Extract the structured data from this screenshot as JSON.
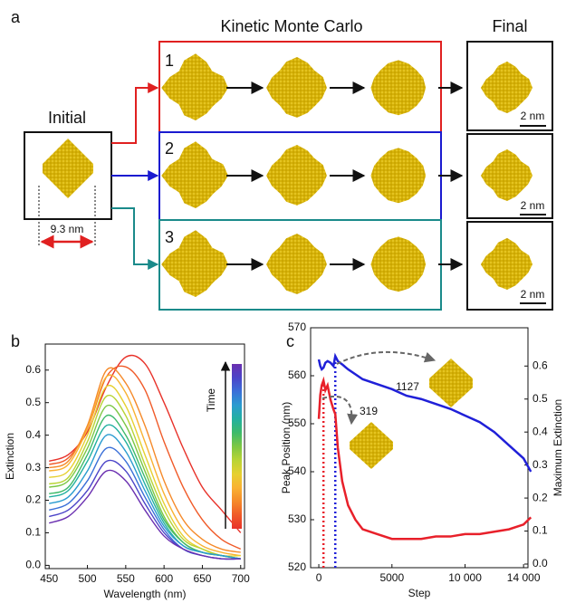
{
  "panel_a": {
    "label": "a",
    "kmc_title": "Kinetic Monte Carlo",
    "final_title": "Final",
    "initial_title": "Initial",
    "runs": [
      "1",
      "2",
      "3"
    ],
    "size_label": "9.3 nm",
    "scale_labels": [
      "2 nm",
      "2 nm",
      "2 nm"
    ]
  },
  "chart_data": [
    {
      "type": "line",
      "panel_label": "b",
      "xlabel": "Wavelength (nm)",
      "ylabel": "Extinction",
      "colorbar_label": "Time",
      "x": [
        450,
        475,
        500,
        525,
        550,
        575,
        600,
        625,
        650,
        675,
        700
      ],
      "xlim": [
        445,
        705
      ],
      "xticks": [
        450,
        500,
        550,
        600,
        650,
        700
      ],
      "ylim": [
        -0.01,
        0.68
      ],
      "yticks": [
        {
          "value": 0,
          "label": "0.0"
        },
        0.1,
        0.2,
        0.3,
        0.4,
        0.5,
        0.6
      ],
      "series": [
        {
          "color": "#e8322a",
          "values": [
            0.32,
            0.34,
            0.41,
            0.55,
            0.64,
            0.62,
            0.5,
            0.36,
            0.24,
            0.17,
            0.1
          ]
        },
        {
          "color": "#f05a28",
          "values": [
            0.31,
            0.33,
            0.42,
            0.58,
            0.61,
            0.54,
            0.38,
            0.24,
            0.14,
            0.08,
            0.05
          ]
        },
        {
          "color": "#f58a2a",
          "values": [
            0.3,
            0.32,
            0.43,
            0.6,
            0.56,
            0.43,
            0.26,
            0.14,
            0.08,
            0.05,
            0.04
          ]
        },
        {
          "color": "#f9b233",
          "values": [
            0.29,
            0.31,
            0.42,
            0.58,
            0.53,
            0.38,
            0.22,
            0.11,
            0.06,
            0.04,
            0.03
          ]
        },
        {
          "color": "#e6d030",
          "values": [
            0.27,
            0.29,
            0.4,
            0.55,
            0.49,
            0.34,
            0.19,
            0.09,
            0.05,
            0.03,
            0.03
          ]
        },
        {
          "color": "#b8d435",
          "values": [
            0.25,
            0.27,
            0.38,
            0.52,
            0.46,
            0.31,
            0.17,
            0.08,
            0.05,
            0.03,
            0.02
          ]
        },
        {
          "color": "#7cc744",
          "values": [
            0.24,
            0.26,
            0.36,
            0.49,
            0.43,
            0.29,
            0.15,
            0.07,
            0.04,
            0.03,
            0.02
          ]
        },
        {
          "color": "#3dba6a",
          "values": [
            0.22,
            0.24,
            0.34,
            0.46,
            0.4,
            0.27,
            0.14,
            0.07,
            0.04,
            0.03,
            0.02
          ]
        },
        {
          "color": "#22b0a0",
          "values": [
            0.21,
            0.23,
            0.32,
            0.43,
            0.38,
            0.25,
            0.13,
            0.06,
            0.04,
            0.03,
            0.02
          ]
        },
        {
          "color": "#2a9bd0",
          "values": [
            0.19,
            0.21,
            0.29,
            0.4,
            0.35,
            0.23,
            0.12,
            0.06,
            0.04,
            0.03,
            0.02
          ]
        },
        {
          "color": "#3a6fd8",
          "values": [
            0.17,
            0.19,
            0.26,
            0.36,
            0.32,
            0.21,
            0.11,
            0.05,
            0.03,
            0.02,
            0.02
          ]
        },
        {
          "color": "#4b44c8",
          "values": [
            0.15,
            0.17,
            0.23,
            0.32,
            0.29,
            0.19,
            0.1,
            0.05,
            0.03,
            0.02,
            0.02
          ]
        },
        {
          "color": "#6a2fb0",
          "values": [
            0.13,
            0.15,
            0.21,
            0.29,
            0.26,
            0.17,
            0.09,
            0.05,
            0.03,
            0.02,
            0.02
          ]
        }
      ]
    },
    {
      "type": "line",
      "panel_label": "c",
      "xlabel": "Step",
      "ylabel": "Peak Position (nm)",
      "y2label": "Maximum Extinction",
      "x": [
        0,
        100,
        200,
        319,
        450,
        600,
        800,
        1000,
        1127,
        1300,
        1600,
        2000,
        2500,
        3000,
        4000,
        5000,
        6000,
        7000,
        8000,
        9000,
        10000,
        11000,
        12000,
        13000,
        14000,
        14500
      ],
      "xlim": [
        -560,
        14300
      ],
      "xticks": [
        0,
        5000,
        {
          "value": 10000,
          "label": "10 000"
        },
        {
          "value": 14000,
          "label": "14 000"
        }
      ],
      "ylim": [
        520,
        570
      ],
      "yticks": [
        520,
        530,
        540,
        550,
        560,
        570
      ],
      "y2lim": [
        -0.011,
        0.716
      ],
      "y2ticks": [
        {
          "value": 0,
          "label": "0.0"
        },
        0.1,
        0.2,
        0.3,
        0.4,
        0.5,
        0.6
      ],
      "markers": [
        319,
        1127
      ],
      "series": [
        {
          "color": "#e8202a",
          "values": [
            551,
            556,
            558,
            559,
            557,
            558,
            555,
            553,
            552,
            545,
            538,
            533,
            530,
            528,
            527,
            526,
            526,
            526,
            526.5,
            526.5,
            527,
            527,
            527.5,
            528,
            529,
            530.5
          ]
        },
        {
          "color": "#2020d8",
          "axis": "y2",
          "values": [
            0.62,
            0.6,
            0.59,
            0.595,
            0.61,
            0.615,
            0.61,
            0.6,
            0.63,
            0.615,
            0.605,
            0.59,
            0.575,
            0.56,
            0.545,
            0.53,
            0.51,
            0.5,
            0.485,
            0.47,
            0.45,
            0.43,
            0.4,
            0.36,
            0.32,
            0.28
          ]
        }
      ]
    }
  ]
}
